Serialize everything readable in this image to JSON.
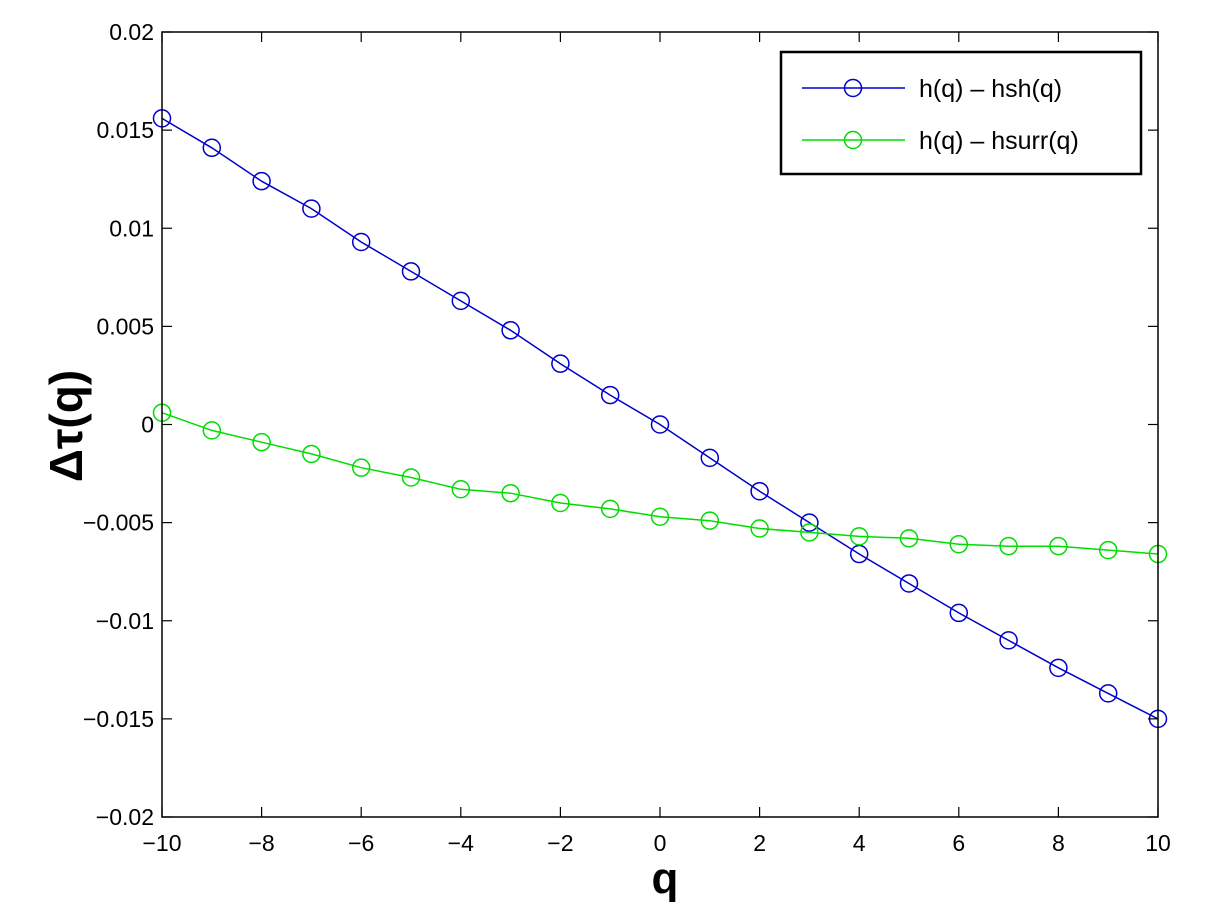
{
  "chart_data": {
    "type": "line",
    "xlabel": "q",
    "ylabel": "Δτ(q)",
    "xlim": [
      -10,
      10
    ],
    "ylim": [
      -0.02,
      0.02
    ],
    "xticks": [
      -10,
      -8,
      -6,
      -4,
      -2,
      0,
      2,
      4,
      6,
      8,
      10
    ],
    "xtick_labels": [
      "−10",
      "−8",
      "−6",
      "−4",
      "−2",
      "0",
      "2",
      "4",
      "6",
      "8",
      "10"
    ],
    "yticks": [
      0.02,
      0.015,
      0.01,
      0.005,
      0,
      -0.005,
      -0.01,
      -0.015,
      -0.02
    ],
    "ytick_labels": [
      "0.02",
      "0.015",
      "0.01",
      "0.005",
      "0",
      "−0.005",
      "−0.01",
      "−0.015",
      "−0.02"
    ],
    "grid": false,
    "legend_position": "top-right",
    "x": [
      -10,
      -9,
      -8,
      -7,
      -6,
      -5,
      -4,
      -3,
      -2,
      -1,
      0,
      1,
      2,
      3,
      4,
      5,
      6,
      7,
      8,
      9,
      10
    ],
    "series": [
      {
        "name": "h(q) – hsh(q)",
        "color": "#0000cc",
        "marker": "circle",
        "values": [
          0.0156,
          0.0141,
          0.0124,
          0.011,
          0.0093,
          0.0078,
          0.0063,
          0.0048,
          0.0031,
          0.0015,
          0.0,
          -0.0017,
          -0.0034,
          -0.005,
          -0.0066,
          -0.0081,
          -0.0096,
          -0.011,
          -0.0124,
          -0.0137,
          -0.015
        ]
      },
      {
        "name": "h(q) – hsurr(q)",
        "color": "#00dd00",
        "marker": "circle",
        "values": [
          0.0006,
          -0.0003,
          -0.0009,
          -0.0015,
          -0.0022,
          -0.0027,
          -0.0033,
          -0.0035,
          -0.004,
          -0.0043,
          -0.0047,
          -0.0049,
          -0.0053,
          -0.0055,
          -0.0057,
          -0.0058,
          -0.0061,
          -0.0062,
          -0.0062,
          -0.0064,
          -0.0066
        ]
      }
    ]
  }
}
